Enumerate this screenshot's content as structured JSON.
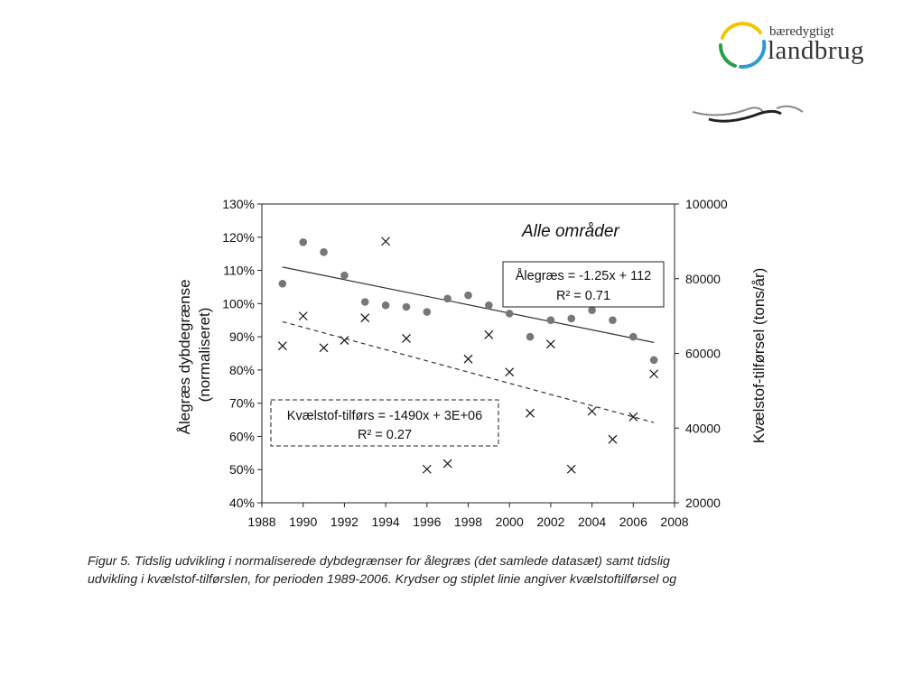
{
  "logo": {
    "line1": "bæredygtigt",
    "line2": "landbrug",
    "colors": [
      "#f2c500",
      "#2e9ad0",
      "#2a9d4a"
    ]
  },
  "chart_data": {
    "type": "scatter",
    "title": "Alle områder",
    "xlabel": "",
    "ylabel_left": "Ålegræs dybdegrænse (normaliseret)",
    "ylabel_right": "Kvælstof-tilførsel (tons/år)",
    "xlim": [
      1988,
      2008
    ],
    "ylim_left": [
      40,
      130
    ],
    "ylim_right": [
      20000,
      100000
    ],
    "x_ticks": [
      "1988",
      "1990",
      "1992",
      "1994",
      "1996",
      "1998",
      "2000",
      "2002",
      "2004",
      "2006",
      "2008"
    ],
    "y_left_ticks": [
      "40%",
      "50%",
      "60%",
      "70%",
      "80%",
      "90%",
      "100%",
      "110%",
      "120%",
      "130%"
    ],
    "y_right_ticks": [
      "20000",
      "40000",
      "60000",
      "80000",
      "100000"
    ],
    "grid": false,
    "series": [
      {
        "name": "Ålegræs",
        "axis": "left",
        "marker": "circle",
        "color": "#777777",
        "x": [
          1989,
          1990,
          1991,
          1992,
          1993,
          1994,
          1995,
          1996,
          1997,
          1998,
          1999,
          2000,
          2001,
          2002,
          2003,
          2004,
          2005,
          2006,
          2007
        ],
        "y": [
          106,
          118.5,
          115.5,
          108.5,
          100.5,
          99.5,
          99,
          97.5,
          101.5,
          102.5,
          99.5,
          97,
          90,
          95,
          95.5,
          98,
          95,
          90,
          83
        ]
      },
      {
        "name": "Kvælstof-tilførs",
        "axis": "right",
        "marker": "x",
        "color": "#111111",
        "x": [
          1989,
          1990,
          1991,
          1992,
          1993,
          1994,
          1995,
          1996,
          1997,
          1998,
          1999,
          2000,
          2001,
          2002,
          2003,
          2004,
          2005,
          2006,
          2007
        ],
        "y": [
          62000,
          70000,
          61500,
          63500,
          69500,
          90000,
          64000,
          29000,
          30500,
          58500,
          65000,
          55000,
          44000,
          62500,
          29000,
          44500,
          37000,
          43000,
          54500
        ]
      }
    ],
    "trendlines": [
      {
        "series": "Ålegræs",
        "axis": "left",
        "style": "solid",
        "x": [
          1989,
          2007
        ],
        "y": [
          111,
          88.3
        ]
      },
      {
        "series": "Kvælstof-tilførs",
        "axis": "right",
        "style": "dashed",
        "x": [
          1989,
          2007
        ],
        "y": [
          68500,
          41500
        ]
      }
    ],
    "annotations": [
      {
        "style": "solid-box",
        "line1": "Ålegræs = -1.25x + 112",
        "line2": "R² = 0.71"
      },
      {
        "style": "dashed-box",
        "line1": "Kvælstof-tilførs = -1490x + 3E+06",
        "line2": "R² = 0.27"
      }
    ]
  },
  "caption": {
    "line1": "Figur 5. Tidslig udvikling i normaliserede dybdegrænser for ålegræs (det samlede datasæt) samt tidslig",
    "line2": "udvikling i kvælstof-tilførslen, for perioden 1989-2006. Krydser og stiplet linie angiver kvælstoftilførsel og"
  }
}
